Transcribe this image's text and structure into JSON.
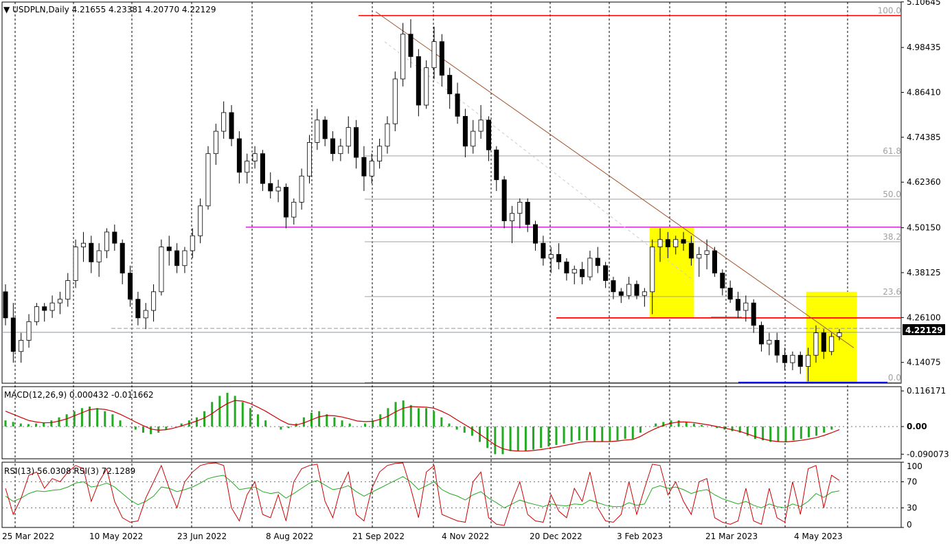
{
  "header": {
    "symbol_line": "USDPLN,Daily  4.21655 4.23381 4.20770 4.22129",
    "macd_label": "MACD(12,26,9) 0.000432 -0.011662",
    "rsi_label": "RSI(13) 56.0308  RSI(3) 72.1289"
  },
  "current_price": "4.22129",
  "colors": {
    "candle_up": "#000000",
    "support_resistance": "#ff0000",
    "pink_line": "#cc00cc",
    "blue_line": "#0000ff",
    "trendline": "#a0522d",
    "highlight": "#ffff00",
    "macd_hist": "#22aa22",
    "macd_signal": "#cc0000",
    "rsi13": "#22aa22",
    "rsi3": "#cc0000"
  },
  "chart_data": [
    {
      "type": "candlestick",
      "panel": "price",
      "y_ticks": [
        "5.10645",
        "4.98435",
        "4.86410",
        "4.74385",
        "4.62360",
        "4.50150",
        "4.38125",
        "4.26100",
        "4.14075"
      ],
      "x_ticks": [
        "25 Mar 2022",
        "10 May 2022",
        "23 Jun 2022",
        "8 Aug 2022",
        "21 Sep 2022",
        "4 Nov 2022",
        "20 Dec 2022",
        "3 Feb 2023",
        "21 Mar 2023",
        "4 May 2023"
      ],
      "ylim": [
        4.085,
        5.106
      ],
      "fibonacci_labels": [
        "100.0",
        "61.8",
        "50.0",
        "38.2",
        "23.6",
        "0.0"
      ],
      "fibonacci_values": [
        5.07,
        4.694,
        4.578,
        4.464,
        4.317,
        4.087
      ],
      "lines": {
        "resistance_top": 5.07,
        "pink_level": 4.503,
        "red_support": 4.26,
        "blue_low": 4.087,
        "dashed_level": 4.232
      },
      "candles": [
        [
          4.33,
          4.35,
          4.24,
          4.26
        ],
        [
          4.26,
          4.3,
          4.14,
          4.17
        ],
        [
          4.17,
          4.22,
          4.14,
          4.2
        ],
        [
          4.2,
          4.27,
          4.18,
          4.25
        ],
        [
          4.25,
          4.3,
          4.24,
          4.29
        ],
        [
          4.29,
          4.3,
          4.25,
          4.28
        ],
        [
          4.28,
          4.32,
          4.26,
          4.3
        ],
        [
          4.3,
          4.33,
          4.27,
          4.31
        ],
        [
          4.31,
          4.38,
          4.29,
          4.36
        ],
        [
          4.36,
          4.47,
          4.34,
          4.45
        ],
        [
          4.45,
          4.49,
          4.41,
          4.46
        ],
        [
          4.46,
          4.48,
          4.38,
          4.41
        ],
        [
          4.41,
          4.46,
          4.37,
          4.44
        ],
        [
          4.44,
          4.5,
          4.42,
          4.49
        ],
        [
          4.49,
          4.51,
          4.44,
          4.46
        ],
        [
          4.46,
          4.47,
          4.35,
          4.38
        ],
        [
          4.38,
          4.4,
          4.29,
          4.31
        ],
        [
          4.31,
          4.33,
          4.24,
          4.26
        ],
        [
          4.26,
          4.3,
          4.23,
          4.28
        ],
        [
          4.28,
          4.35,
          4.25,
          4.33
        ],
        [
          4.33,
          4.47,
          4.32,
          4.45
        ],
        [
          4.45,
          4.48,
          4.4,
          4.44
        ],
        [
          4.44,
          4.46,
          4.38,
          4.4
        ],
        [
          4.4,
          4.45,
          4.38,
          4.44
        ],
        [
          4.44,
          4.5,
          4.42,
          4.48
        ],
        [
          4.48,
          4.58,
          4.46,
          4.56
        ],
        [
          4.56,
          4.72,
          4.55,
          4.7
        ],
        [
          4.7,
          4.78,
          4.67,
          4.76
        ],
        [
          4.76,
          4.84,
          4.74,
          4.81
        ],
        [
          4.81,
          4.83,
          4.72,
          4.74
        ],
        [
          4.74,
          4.76,
          4.62,
          4.65
        ],
        [
          4.65,
          4.7,
          4.62,
          4.68
        ],
        [
          4.68,
          4.72,
          4.66,
          4.7
        ],
        [
          4.7,
          4.71,
          4.6,
          4.62
        ],
        [
          4.62,
          4.65,
          4.58,
          4.6
        ],
        [
          4.6,
          4.63,
          4.57,
          4.61
        ],
        [
          4.61,
          4.62,
          4.5,
          4.53
        ],
        [
          4.53,
          4.58,
          4.51,
          4.57
        ],
        [
          4.57,
          4.66,
          4.55,
          4.64
        ],
        [
          4.64,
          4.75,
          4.62,
          4.73
        ],
        [
          4.73,
          4.82,
          4.71,
          4.79
        ],
        [
          4.79,
          4.8,
          4.72,
          4.74
        ],
        [
          4.74,
          4.76,
          4.68,
          4.7
        ],
        [
          4.7,
          4.74,
          4.68,
          4.72
        ],
        [
          4.72,
          4.8,
          4.7,
          4.77
        ],
        [
          4.77,
          4.79,
          4.66,
          4.69
        ],
        [
          4.69,
          4.72,
          4.6,
          4.64
        ],
        [
          4.64,
          4.7,
          4.62,
          4.68
        ],
        [
          4.68,
          4.74,
          4.66,
          4.72
        ],
        [
          4.72,
          4.8,
          4.7,
          4.78
        ],
        [
          4.78,
          4.92,
          4.76,
          4.9
        ],
        [
          4.9,
          5.05,
          4.88,
          5.02
        ],
        [
          5.02,
          5.06,
          4.93,
          4.96
        ],
        [
          4.96,
          4.98,
          4.8,
          4.83
        ],
        [
          4.83,
          4.95,
          4.82,
          4.93
        ],
        [
          4.93,
          5.04,
          4.9,
          5.0
        ],
        [
          5.0,
          5.02,
          4.88,
          4.91
        ],
        [
          4.91,
          4.93,
          4.82,
          4.86
        ],
        [
          4.86,
          4.89,
          4.78,
          4.8
        ],
        [
          4.8,
          4.82,
          4.69,
          4.72
        ],
        [
          4.72,
          4.79,
          4.7,
          4.76
        ],
        [
          4.76,
          4.83,
          4.74,
          4.79
        ],
        [
          4.79,
          4.8,
          4.68,
          4.71
        ],
        [
          4.71,
          4.72,
          4.6,
          4.63
        ],
        [
          4.63,
          4.64,
          4.5,
          4.52
        ],
        [
          4.52,
          4.56,
          4.46,
          4.54
        ],
        [
          4.54,
          4.58,
          4.5,
          4.57
        ],
        [
          4.57,
          4.58,
          4.49,
          4.51
        ],
        [
          4.51,
          4.52,
          4.44,
          4.46
        ],
        [
          4.46,
          4.48,
          4.4,
          4.42
        ],
        [
          4.42,
          4.45,
          4.38,
          4.43
        ],
        [
          4.43,
          4.46,
          4.39,
          4.41
        ],
        [
          4.41,
          4.42,
          4.36,
          4.38
        ],
        [
          4.38,
          4.4,
          4.35,
          4.39
        ],
        [
          4.39,
          4.41,
          4.35,
          4.37
        ],
        [
          4.37,
          4.44,
          4.36,
          4.42
        ],
        [
          4.42,
          4.45,
          4.38,
          4.4
        ],
        [
          4.4,
          4.41,
          4.34,
          4.36
        ],
        [
          4.36,
          4.37,
          4.31,
          4.33
        ],
        [
          4.33,
          4.34,
          4.3,
          4.32
        ],
        [
          4.32,
          4.37,
          4.31,
          4.35
        ],
        [
          4.35,
          4.36,
          4.31,
          4.32
        ],
        [
          4.32,
          4.34,
          4.29,
          4.33
        ],
        [
          4.33,
          4.47,
          4.27,
          4.45
        ],
        [
          4.45,
          4.5,
          4.41,
          4.47
        ],
        [
          4.47,
          4.49,
          4.42,
          4.45
        ],
        [
          4.45,
          4.48,
          4.43,
          4.47
        ],
        [
          4.47,
          4.49,
          4.44,
          4.46
        ],
        [
          4.46,
          4.48,
          4.4,
          4.42
        ],
        [
          4.42,
          4.45,
          4.37,
          4.43
        ],
        [
          4.43,
          4.47,
          4.39,
          4.44
        ],
        [
          4.44,
          4.45,
          4.37,
          4.38
        ],
        [
          4.38,
          4.39,
          4.32,
          4.34
        ],
        [
          4.34,
          4.36,
          4.3,
          4.31
        ],
        [
          4.31,
          4.33,
          4.26,
          4.28
        ],
        [
          4.28,
          4.32,
          4.25,
          4.3
        ],
        [
          4.3,
          4.31,
          4.22,
          4.24
        ],
        [
          4.24,
          4.25,
          4.17,
          4.19
        ],
        [
          4.19,
          4.22,
          4.16,
          4.2
        ],
        [
          4.2,
          4.22,
          4.14,
          4.16
        ],
        [
          4.16,
          4.18,
          4.12,
          4.14
        ],
        [
          4.14,
          4.17,
          4.12,
          4.16
        ],
        [
          4.16,
          4.17,
          4.11,
          4.13
        ],
        [
          4.13,
          4.18,
          4.09,
          4.16
        ],
        [
          4.16,
          4.24,
          4.14,
          4.22
        ],
        [
          4.22,
          4.23,
          4.15,
          4.17
        ],
        [
          4.17,
          4.22,
          4.16,
          4.21
        ],
        [
          4.21,
          4.23,
          4.2,
          4.22
        ]
      ]
    },
    {
      "type": "bar",
      "panel": "macd",
      "title": "MACD(12,26,9)",
      "y_ticks": [
        "0.116171",
        "0.00",
        "-0.090073"
      ],
      "ylim": [
        -0.105,
        0.13
      ],
      "histogram": [
        0.02,
        0.015,
        0.01,
        0.008,
        0.01,
        0.012,
        0.02,
        0.03,
        0.04,
        0.05,
        0.06,
        0.065,
        0.06,
        0.05,
        0.04,
        0.02,
        0.0,
        -0.01,
        -0.02,
        -0.025,
        -0.02,
        -0.01,
        0.0,
        0.01,
        0.02,
        0.03,
        0.05,
        0.08,
        0.1,
        0.11,
        0.1,
        0.08,
        0.06,
        0.04,
        0.02,
        0.0,
        -0.01,
        -0.005,
        0.01,
        0.03,
        0.045,
        0.05,
        0.04,
        0.03,
        0.02,
        0.01,
        0.0,
        0.01,
        0.02,
        0.04,
        0.06,
        0.08,
        0.085,
        0.07,
        0.06,
        0.06,
        0.05,
        0.03,
        0.01,
        -0.01,
        -0.02,
        -0.03,
        -0.05,
        -0.07,
        -0.09,
        -0.09,
        -0.08,
        -0.08,
        -0.08,
        -0.075,
        -0.07,
        -0.065,
        -0.06,
        -0.055,
        -0.05,
        -0.045,
        -0.045,
        -0.05,
        -0.05,
        -0.05,
        -0.045,
        -0.04,
        -0.04,
        -0.02,
        0.0,
        0.01,
        0.015,
        0.02,
        0.02,
        0.015,
        0.01,
        0.005,
        0.0,
        -0.005,
        -0.01,
        -0.015,
        -0.02,
        -0.03,
        -0.04,
        -0.045,
        -0.05,
        -0.05,
        -0.05,
        -0.045,
        -0.04,
        -0.035,
        -0.03,
        -0.02,
        -0.01,
        0.0
      ],
      "signal": [
        0.05,
        0.04,
        0.03,
        0.02,
        0.015,
        0.012,
        0.013,
        0.018,
        0.025,
        0.035,
        0.045,
        0.055,
        0.058,
        0.056,
        0.05,
        0.04,
        0.028,
        0.015,
        0.003,
        -0.008,
        -0.012,
        -0.01,
        -0.005,
        0.002,
        0.01,
        0.018,
        0.028,
        0.042,
        0.06,
        0.075,
        0.085,
        0.083,
        0.075,
        0.063,
        0.05,
        0.035,
        0.02,
        0.008,
        0.005,
        0.012,
        0.022,
        0.032,
        0.036,
        0.035,
        0.031,
        0.025,
        0.018,
        0.016,
        0.017,
        0.024,
        0.034,
        0.048,
        0.06,
        0.065,
        0.064,
        0.063,
        0.06,
        0.05,
        0.038,
        0.022,
        0.007,
        -0.008,
        -0.025,
        -0.042,
        -0.06,
        -0.072,
        -0.078,
        -0.08,
        -0.08,
        -0.078,
        -0.075,
        -0.071,
        -0.067,
        -0.062,
        -0.057,
        -0.052,
        -0.049,
        -0.049,
        -0.049,
        -0.049,
        -0.047,
        -0.044,
        -0.042,
        -0.032,
        -0.018,
        -0.006,
        0.004,
        0.011,
        0.015,
        0.015,
        0.013,
        0.009,
        0.005,
        0.0,
        -0.005,
        -0.01,
        -0.016,
        -0.024,
        -0.033,
        -0.04,
        -0.046,
        -0.049,
        -0.05,
        -0.048,
        -0.045,
        -0.041,
        -0.036,
        -0.029,
        -0.02,
        -0.01
      ]
    },
    {
      "type": "line",
      "panel": "rsi",
      "title": "RSI",
      "y_ticks": [
        "100",
        "70",
        "30",
        "0"
      ],
      "ylim": [
        0,
        100
      ],
      "series": [
        {
          "name": "RSI(13)",
          "values": [
            48,
            40,
            45,
            52,
            56,
            55,
            57,
            58,
            62,
            68,
            70,
            62,
            64,
            68,
            62,
            52,
            42,
            35,
            40,
            48,
            62,
            60,
            55,
            58,
            62,
            68,
            75,
            78,
            80,
            70,
            58,
            60,
            62,
            55,
            52,
            54,
            45,
            52,
            60,
            68,
            72,
            65,
            58,
            60,
            64,
            55,
            48,
            54,
            60,
            66,
            72,
            78,
            70,
            58,
            64,
            70,
            58,
            52,
            48,
            42,
            50,
            55,
            45,
            38,
            30,
            36,
            42,
            38,
            35,
            32,
            36,
            34,
            33,
            36,
            35,
            42,
            38,
            34,
            32,
            32,
            38,
            34,
            36,
            60,
            64,
            60,
            62,
            58,
            52,
            56,
            58,
            50,
            44,
            40,
            36,
            40,
            34,
            30,
            36,
            32,
            30,
            36,
            32,
            40,
            52,
            46,
            54,
            56
          ]
        },
        {
          "name": "RSI(3)",
          "values": [
            60,
            20,
            45,
            80,
            85,
            60,
            75,
            70,
            85,
            95,
            90,
            40,
            70,
            90,
            40,
            15,
            8,
            10,
            45,
            70,
            95,
            60,
            30,
            70,
            85,
            95,
            98,
            99,
            95,
            30,
            10,
            50,
            70,
            20,
            15,
            50,
            10,
            70,
            90,
            95,
            97,
            40,
            15,
            60,
            85,
            20,
            10,
            60,
            85,
            95,
            98,
            99,
            60,
            15,
            85,
            95,
            20,
            15,
            10,
            8,
            70,
            85,
            15,
            5,
            3,
            40,
            70,
            20,
            10,
            8,
            50,
            25,
            15,
            60,
            40,
            85,
            30,
            10,
            8,
            20,
            70,
            20,
            60,
            97,
            95,
            50,
            70,
            40,
            20,
            70,
            75,
            15,
            8,
            5,
            10,
            60,
            10,
            5,
            60,
            15,
            8,
            70,
            20,
            90,
            95,
            30,
            80,
            72
          ]
        }
      ]
    }
  ]
}
